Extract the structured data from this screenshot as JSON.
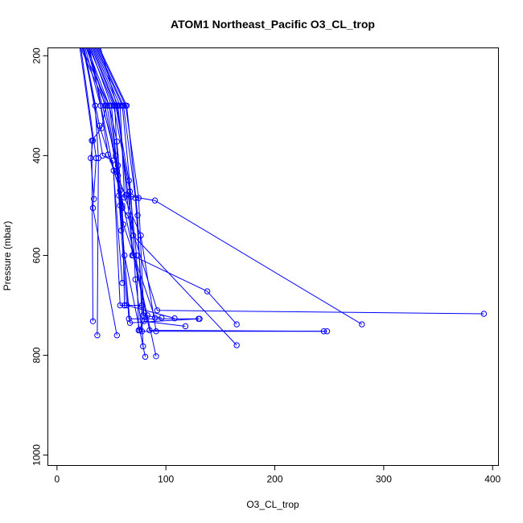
{
  "chart_data": {
    "type": "line",
    "title": "ATOM1 Northeast_Pacific O3_CL_trop",
    "xlabel": "O3_CL_trop",
    "ylabel": "Pressure (mbar)",
    "xlim": [
      -8,
      405
    ],
    "ylim": [
      1020,
      185
    ],
    "y_reversed": true,
    "x_ticks": [
      0,
      100,
      200,
      300,
      400
    ],
    "y_ticks": [
      200,
      400,
      600,
      800,
      1000
    ],
    "color": "#0000ff",
    "grid": false,
    "legend": "none",
    "series": [
      {
        "x": [
          22,
          45,
          41,
          32,
          33
        ],
        "y": [
          185,
          300,
          345,
          370,
          732
        ]
      },
      {
        "x": [
          24,
          35,
          38,
          37
        ],
        "y": [
          185,
          300,
          405,
          760
        ]
      },
      {
        "x": [
          26,
          40,
          47,
          63,
          90,
          280
        ],
        "y": [
          185,
          300,
          398,
          480,
          490,
          738
        ]
      },
      {
        "x": [
          28,
          48,
          55,
          60,
          62
        ],
        "y": [
          185,
          300,
          372,
          500,
          700
        ]
      },
      {
        "x": [
          29,
          44,
          55,
          59,
          64,
          108
        ],
        "y": [
          185,
          300,
          430,
          550,
          700,
          726
        ]
      },
      {
        "x": [
          31,
          50,
          54,
          58,
          67,
          130
        ],
        "y": [
          185,
          300,
          400,
          500,
          735,
          727
        ]
      },
      {
        "x": [
          32,
          53,
          57,
          62,
          76,
          81
        ],
        "y": [
          185,
          300,
          480,
          600,
          750,
          803
        ]
      },
      {
        "x": [
          23,
          48,
          56,
          61,
          90
        ],
        "y": [
          185,
          300,
          440,
          538,
          725
        ]
      },
      {
        "x": [
          25,
          39,
          58,
          91
        ],
        "y": [
          185,
          340,
          470,
          802
        ]
      },
      {
        "x": [
          27,
          46,
          60,
          65,
          92,
          392
        ],
        "y": [
          185,
          300,
          505,
          520,
          710,
          717
        ]
      },
      {
        "x": [
          30,
          52,
          67,
          73,
          75,
          83
        ],
        "y": [
          185,
          300,
          472,
          600,
          750,
          720
        ]
      },
      {
        "x": [
          33,
          54,
          66,
          69,
          138,
          165
        ],
        "y": [
          185,
          300,
          450,
          600,
          672,
          738
        ]
      },
      {
        "x": [
          34,
          56,
          64,
          70,
          85,
          248
        ],
        "y": [
          185,
          300,
          478,
          600,
          750,
          752
        ]
      },
      {
        "x": [
          35,
          58,
          62,
          77,
          91
        ],
        "y": [
          185,
          300,
          484,
          560,
          752
        ]
      },
      {
        "x": [
          36,
          60,
          68,
          72,
          78,
          245
        ],
        "y": [
          185,
          300,
          482,
          648,
          752,
          752
        ]
      },
      {
        "x": [
          37,
          61,
          72,
          79,
          96
        ],
        "y": [
          185,
          300,
          485,
          720,
          725
        ]
      },
      {
        "x": [
          38,
          63,
          75,
          80,
          118
        ],
        "y": [
          185,
          300,
          485,
          732,
          742
        ]
      },
      {
        "x": [
          39,
          64,
          74,
          79
        ],
        "y": [
          185,
          300,
          520,
          782
        ]
      },
      {
        "x": [
          40,
          55,
          70,
          165
        ],
        "y": [
          185,
          300,
          560,
          780
        ]
      },
      {
        "x": [
          21,
          33,
          31,
          34
        ],
        "y": [
          185,
          370,
          405,
          487
        ]
      },
      {
        "x": [
          22,
          36,
          33,
          55
        ],
        "y": [
          185,
          405,
          505,
          760
        ]
      },
      {
        "x": [
          25,
          42,
          51,
          60
        ],
        "y": [
          185,
          400,
          410,
          655
        ]
      },
      {
        "x": [
          28,
          56,
          66,
          131
        ],
        "y": [
          185,
          420,
          727,
          727
        ]
      },
      {
        "x": [
          30,
          52,
          58,
          62,
          78
        ],
        "y": [
          185,
          430,
          700,
          700,
          700
        ]
      }
    ]
  }
}
